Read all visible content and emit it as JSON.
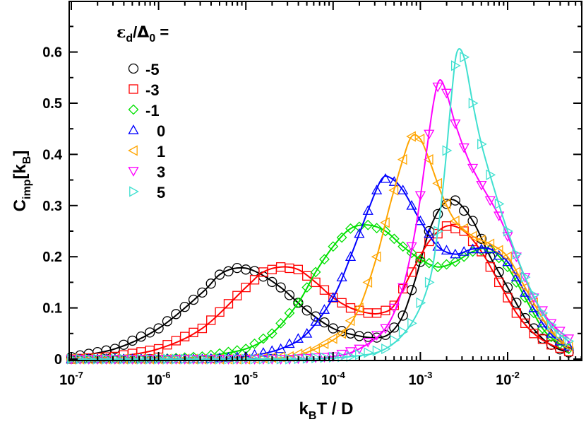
{
  "chart_data": {
    "type": "line",
    "xscale": "log",
    "xlim_log10": [
      -7,
      -1.3
    ],
    "ylim": [
      0,
      0.7
    ],
    "xlabel": {
      "base": "k",
      "sub": "B",
      "rest": "T / D"
    },
    "ylabel": {
      "base": "C",
      "sub": "imp",
      "bracket_base": "[k",
      "bracket_sub": "B",
      "close": "]"
    },
    "x_ticks": [
      {
        "log10": -7,
        "base": "10",
        "exp": "-7"
      },
      {
        "log10": -6,
        "base": "10",
        "exp": "-6"
      },
      {
        "log10": -5,
        "base": "10",
        "exp": "-5"
      },
      {
        "log10": -4,
        "base": "10",
        "exp": "-4"
      },
      {
        "log10": -3,
        "base": "10",
        "exp": "-3"
      },
      {
        "log10": -2,
        "base": "10",
        "exp": "-2"
      }
    ],
    "y_ticks": [
      {
        "value": 0,
        "label": "0"
      },
      {
        "value": 0.1,
        "label": "0.1"
      },
      {
        "value": 0.2,
        "label": "0.2"
      },
      {
        "value": 0.3,
        "label": "0.3"
      },
      {
        "value": 0.4,
        "label": "0.4"
      },
      {
        "value": 0.5,
        "label": "0.5"
      },
      {
        "value": 0.6,
        "label": "0.6"
      }
    ],
    "legend": {
      "title": {
        "eps": "ε",
        "eps_sub": "d",
        "slash": "/",
        "delta": "Δ",
        "delta_sub": "0",
        "eq": " ="
      },
      "placement": "top-left"
    },
    "series": [
      {
        "name": "-5",
        "color": "#000000",
        "marker": "circle",
        "points": [
          [
            -7,
            0.004
          ],
          [
            -6.5,
            0.02
          ],
          [
            -6,
            0.06
          ],
          [
            -5.5,
            0.13
          ],
          [
            -5.3,
            0.165
          ],
          [
            -5.1,
            0.178
          ],
          [
            -4.9,
            0.172
          ],
          [
            -4.6,
            0.14
          ],
          [
            -4.3,
            0.095
          ],
          [
            -4,
            0.06
          ],
          [
            -3.7,
            0.045
          ],
          [
            -3.5,
            0.042
          ],
          [
            -3.35,
            0.05
          ],
          [
            -3.2,
            0.085
          ],
          [
            -3.05,
            0.16
          ],
          [
            -2.9,
            0.25
          ],
          [
            -2.75,
            0.3
          ],
          [
            -2.6,
            0.31
          ],
          [
            -2.4,
            0.27
          ],
          [
            -2.2,
            0.2
          ],
          [
            -2,
            0.14
          ],
          [
            -1.8,
            0.08
          ],
          [
            -1.6,
            0.04
          ],
          [
            -1.45,
            0.022
          ],
          [
            -1.3,
            0.013
          ]
        ]
      },
      {
        "name": "-3",
        "color": "#ff0000",
        "marker": "square",
        "points": [
          [
            -7,
            0.0
          ],
          [
            -6.5,
            0.005
          ],
          [
            -6,
            0.02
          ],
          [
            -5.5,
            0.06
          ],
          [
            -5,
            0.14
          ],
          [
            -4.8,
            0.17
          ],
          [
            -4.6,
            0.18
          ],
          [
            -4.4,
            0.175
          ],
          [
            -4.2,
            0.15
          ],
          [
            -4,
            0.12
          ],
          [
            -3.8,
            0.1
          ],
          [
            -3.6,
            0.09
          ],
          [
            -3.45,
            0.09
          ],
          [
            -3.3,
            0.105
          ],
          [
            -3.1,
            0.17
          ],
          [
            -2.9,
            0.23
          ],
          [
            -2.7,
            0.26
          ],
          [
            -2.5,
            0.25
          ],
          [
            -2.3,
            0.21
          ],
          [
            -2.1,
            0.15
          ],
          [
            -1.9,
            0.09
          ],
          [
            -1.7,
            0.05
          ],
          [
            -1.5,
            0.028
          ],
          [
            -1.3,
            0.015
          ]
        ]
      },
      {
        "name": "-1",
        "color": "#00e000",
        "marker": "diamond",
        "points": [
          [
            -7,
            0.0
          ],
          [
            -6,
            0.0
          ],
          [
            -5.5,
            0.005
          ],
          [
            -5,
            0.02
          ],
          [
            -4.7,
            0.05
          ],
          [
            -4.4,
            0.11
          ],
          [
            -4.2,
            0.17
          ],
          [
            -4,
            0.22
          ],
          [
            -3.8,
            0.255
          ],
          [
            -3.6,
            0.262
          ],
          [
            -3.4,
            0.25
          ],
          [
            -3.2,
            0.22
          ],
          [
            -3,
            0.195
          ],
          [
            -2.8,
            0.18
          ],
          [
            -2.6,
            0.19
          ],
          [
            -2.4,
            0.21
          ],
          [
            -2.2,
            0.215
          ],
          [
            -2,
            0.18
          ],
          [
            -1.8,
            0.12
          ],
          [
            -1.6,
            0.06
          ],
          [
            -1.45,
            0.035
          ],
          [
            -1.3,
            0.02
          ]
        ]
      },
      {
        "name": "0",
        "color": "#0000ff",
        "marker": "triangle-up",
        "points": [
          [
            -7,
            0.0
          ],
          [
            -5.5,
            0.0
          ],
          [
            -5,
            0.005
          ],
          [
            -4.6,
            0.02
          ],
          [
            -4.3,
            0.05
          ],
          [
            -4,
            0.12
          ],
          [
            -3.8,
            0.2
          ],
          [
            -3.6,
            0.29
          ],
          [
            -3.45,
            0.35
          ],
          [
            -3.35,
            0.355
          ],
          [
            -3.2,
            0.33
          ],
          [
            -3,
            0.27
          ],
          [
            -2.8,
            0.22
          ],
          [
            -2.6,
            0.205
          ],
          [
            -2.4,
            0.215
          ],
          [
            -2.2,
            0.215
          ],
          [
            -2,
            0.19
          ],
          [
            -1.8,
            0.13
          ],
          [
            -1.6,
            0.07
          ],
          [
            -1.45,
            0.04
          ],
          [
            -1.3,
            0.025
          ]
        ]
      },
      {
        "name": "1",
        "color": "#ffa500",
        "marker": "triangle-left",
        "points": [
          [
            -7,
            0.0
          ],
          [
            -5,
            0.0
          ],
          [
            -4.5,
            0.005
          ],
          [
            -4.2,
            0.02
          ],
          [
            -3.9,
            0.05
          ],
          [
            -3.7,
            0.1
          ],
          [
            -3.5,
            0.2
          ],
          [
            -3.35,
            0.3
          ],
          [
            -3.2,
            0.39
          ],
          [
            -3.1,
            0.435
          ],
          [
            -3,
            0.43
          ],
          [
            -2.9,
            0.39
          ],
          [
            -2.75,
            0.32
          ],
          [
            -2.6,
            0.27
          ],
          [
            -2.4,
            0.24
          ],
          [
            -2.2,
            0.225
          ],
          [
            -2,
            0.2
          ],
          [
            -1.8,
            0.14
          ],
          [
            -1.6,
            0.08
          ],
          [
            -1.45,
            0.045
          ],
          [
            -1.3,
            0.025
          ]
        ]
      },
      {
        "name": "3",
        "color": "#ff00ff",
        "marker": "triangle-down",
        "points": [
          [
            -7,
            0.0
          ],
          [
            -4.5,
            0.0
          ],
          [
            -4,
            0.005
          ],
          [
            -3.7,
            0.02
          ],
          [
            -3.4,
            0.06
          ],
          [
            -3.2,
            0.14
          ],
          [
            -3.05,
            0.26
          ],
          [
            -2.95,
            0.38
          ],
          [
            -2.85,
            0.5
          ],
          [
            -2.78,
            0.545
          ],
          [
            -2.7,
            0.52
          ],
          [
            -2.6,
            0.46
          ],
          [
            -2.45,
            0.39
          ],
          [
            -2.3,
            0.34
          ],
          [
            -2.1,
            0.28
          ],
          [
            -1.9,
            0.2
          ],
          [
            -1.7,
            0.12
          ],
          [
            -1.5,
            0.07
          ],
          [
            -1.3,
            0.04
          ]
        ]
      },
      {
        "name": "5",
        "color": "#40e0d0",
        "marker": "triangle-right",
        "points": [
          [
            -7,
            0.0
          ],
          [
            -4.5,
            0.0
          ],
          [
            -3.8,
            0.005
          ],
          [
            -3.4,
            0.02
          ],
          [
            -3.1,
            0.07
          ],
          [
            -2.9,
            0.15
          ],
          [
            -2.8,
            0.25
          ],
          [
            -2.72,
            0.37
          ],
          [
            -2.64,
            0.52
          ],
          [
            -2.58,
            0.6
          ],
          [
            -2.5,
            0.59
          ],
          [
            -2.4,
            0.5
          ],
          [
            -2.3,
            0.42
          ],
          [
            -2.15,
            0.33
          ],
          [
            -2,
            0.25
          ],
          [
            -1.8,
            0.16
          ],
          [
            -1.6,
            0.09
          ],
          [
            -1.45,
            0.055
          ],
          [
            -1.3,
            0.035
          ]
        ]
      }
    ]
  }
}
